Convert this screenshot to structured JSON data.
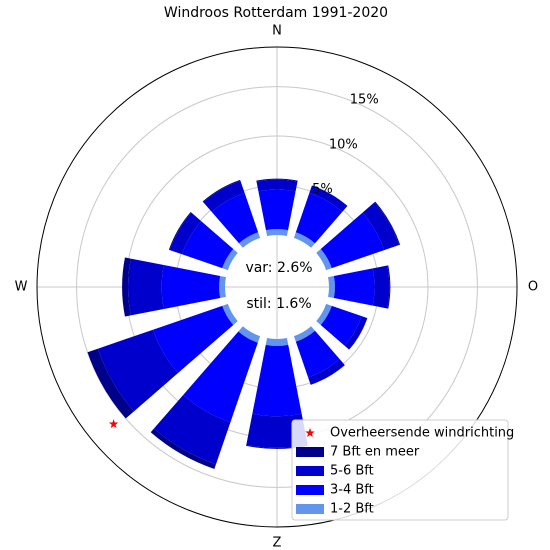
{
  "chart_data": {
    "type": "windrose",
    "title": "Windroos Rotterdam 1991-2020",
    "x": [
      0,
      30,
      60,
      90,
      120,
      150,
      180,
      210,
      240,
      270,
      300,
      330
    ],
    "xticks": [
      {
        "value": 0,
        "label": "N"
      },
      {
        "value": 90,
        "label": "O"
      },
      {
        "value": 180,
        "label": "Z"
      },
      {
        "value": 270,
        "label": "W"
      }
    ],
    "ylim": [
      0,
      19
    ],
    "yticks": [
      {
        "value": 5,
        "label": "5%"
      },
      {
        "value": 10,
        "label": "10%"
      },
      {
        "value": 15,
        "label": "15%"
      }
    ],
    "series": [
      {
        "name": "1-2 Bft",
        "color": "#6495ed",
        "values": [
          0.6,
          0.6,
          0.6,
          0.6,
          0.6,
          0.6,
          0.7,
          0.7,
          0.6,
          0.6,
          0.6,
          0.6
        ]
      },
      {
        "name": "3-4 Bft",
        "color": "#0000ff",
        "values": [
          4.0,
          4.2,
          5.6,
          4.0,
          3.2,
          3.8,
          7.1,
          8.5,
          7.4,
          5.8,
          4.3,
          4.2
        ]
      },
      {
        "name": "5-6 Bft",
        "color": "#0000cd",
        "values": [
          1.0,
          0.8,
          1.6,
          1.5,
          0.6,
          0.8,
          3.2,
          4.5,
          5.9,
          3.4,
          1.3,
          1.3
        ]
      },
      {
        "name": "7 Bft en meer",
        "color": "#00008b",
        "values": [
          0.1,
          0.0,
          0.1,
          0.1,
          0.0,
          0.0,
          0.1,
          0.5,
          1.1,
          0.6,
          0.1,
          0.1
        ]
      }
    ],
    "dominant": {
      "name": "Overheersende windrichting",
      "color": "#ff0000",
      "x": 230,
      "value": 16.3
    },
    "annotations": [
      "var: 2.6%",
      "stil: 1.6%"
    ],
    "grid": true,
    "legend": "lower right"
  }
}
